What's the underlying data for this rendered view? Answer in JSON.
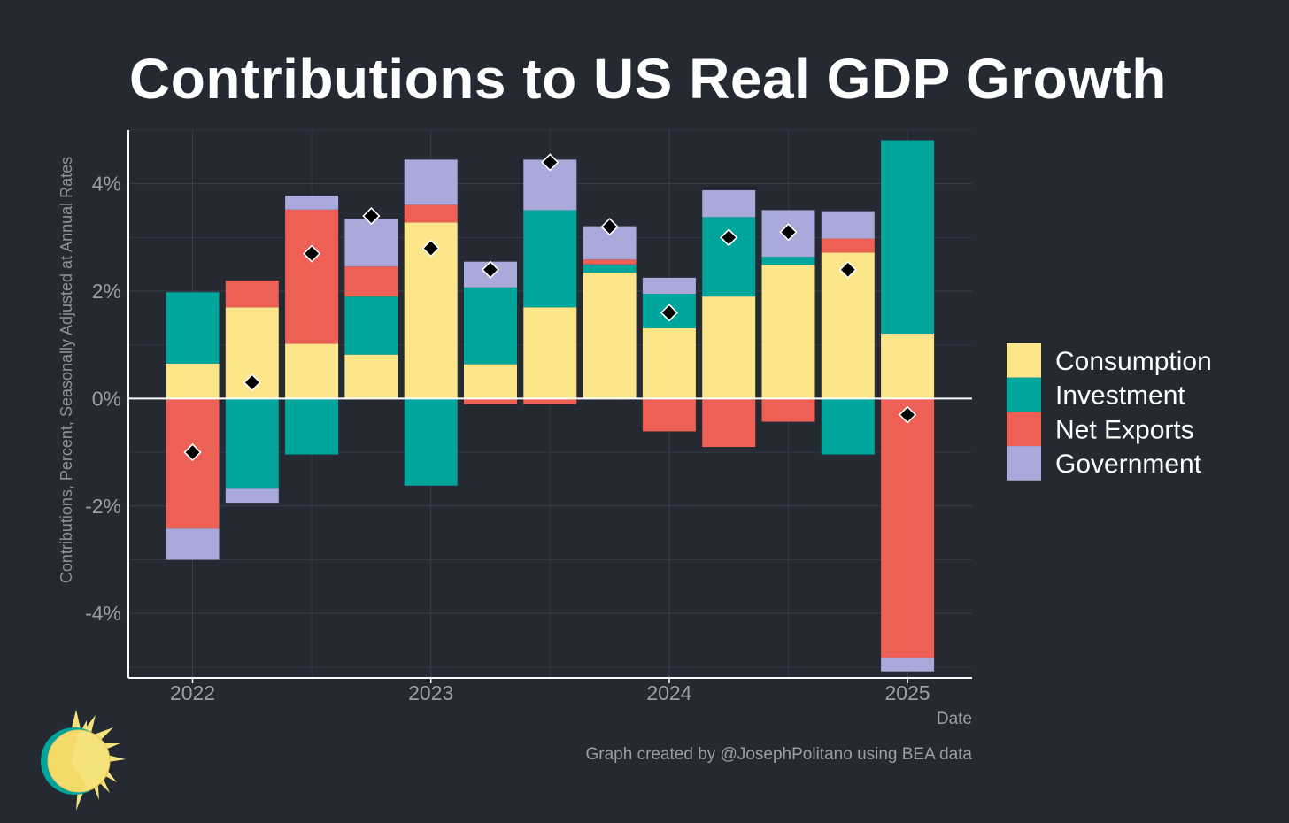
{
  "chart_data": {
    "type": "bar",
    "stacked": true,
    "title": "Contributions to US Real GDP Growth",
    "ylabel": "Contributions, Percent, Seasonally Adjusted at Annual Rates",
    "xlabel": "Date",
    "ylim": [
      -5.2,
      5.0
    ],
    "y_ticks": [
      -4,
      2,
      0,
      -2,
      4
    ],
    "y_tick_labels": [
      "-4%",
      "2%",
      "0%",
      "-2%",
      "4%"
    ],
    "x_ticks": [
      "2022",
      "2023",
      "2024",
      "2025"
    ],
    "quarters": [
      "2022-Q1",
      "2022-Q2",
      "2022-Q3",
      "2022-Q4",
      "2023-Q1",
      "2023-Q2",
      "2023-Q3",
      "2023-Q4",
      "2024-Q1",
      "2024-Q2",
      "2024-Q3",
      "2024-Q4",
      "2025-Q1"
    ],
    "grid": true,
    "legend_position": "right",
    "series": [
      {
        "name": "Consumption",
        "color": "#fde68a",
        "values": [
          0.65,
          1.7,
          1.02,
          0.82,
          3.28,
          0.64,
          1.7,
          2.35,
          1.31,
          1.9,
          2.49,
          2.72,
          1.21
        ]
      },
      {
        "name": "Investment",
        "color": "#00a69c",
        "values": [
          1.33,
          -1.68,
          -1.04,
          1.08,
          -1.62,
          1.43,
          1.81,
          0.15,
          0.64,
          1.48,
          0.15,
          -1.04,
          3.6
        ]
      },
      {
        "name": "Net Exports",
        "color": "#ee6055",
        "values": [
          -2.42,
          0.5,
          2.5,
          0.56,
          0.33,
          -0.1,
          -0.1,
          0.09,
          -0.61,
          -0.9,
          -0.43,
          0.26,
          -4.83
        ]
      },
      {
        "name": "Government",
        "color": "#a9a9db",
        "values": [
          -0.58,
          -0.26,
          0.26,
          0.89,
          0.84,
          0.48,
          0.94,
          0.62,
          0.3,
          0.5,
          0.87,
          0.51,
          -0.25
        ]
      }
    ],
    "total_gdp": [
      -1.0,
      0.3,
      2.7,
      3.4,
      2.8,
      2.4,
      4.4,
      3.2,
      1.6,
      3.0,
      3.1,
      2.4,
      -0.3
    ],
    "total_marker": "diamond",
    "total_color": "#000000"
  },
  "caption": "Graph created by @JosephPolitano using BEA data"
}
